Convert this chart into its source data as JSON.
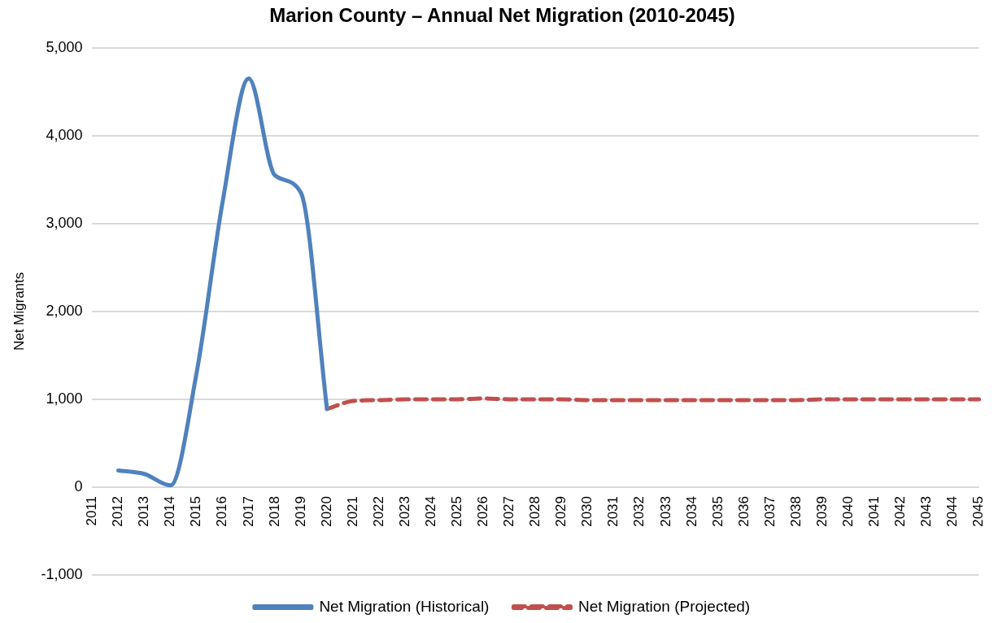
{
  "chart_data": {
    "type": "line",
    "title": "Marion County – Annual Net Migration (2010-2045)",
    "ylabel": "Net Migrants",
    "categories": [
      "2011",
      "2012",
      "2013",
      "2014",
      "2015",
      "2016",
      "2017",
      "2018",
      "2019",
      "2020",
      "2021",
      "2022",
      "2023",
      "2024",
      "2025",
      "2026",
      "2027",
      "2028",
      "2029",
      "2030",
      "2031",
      "2032",
      "2033",
      "2034",
      "2035",
      "2036",
      "2037",
      "2038",
      "2039",
      "2040",
      "2041",
      "2042",
      "2043",
      "2044",
      "2045"
    ],
    "series": [
      {
        "name": "Net Migration (Historical)",
        "color": "#4f81bd",
        "line_style": "solid",
        "values": [
          null,
          190,
          150,
          20,
          1300,
          3250,
          4650,
          3550,
          3350,
          890,
          null,
          null,
          null,
          null,
          null,
          null,
          null,
          null,
          null,
          null,
          null,
          null,
          null,
          null,
          null,
          null,
          null,
          null,
          null,
          null,
          null,
          null,
          null,
          null,
          null
        ]
      },
      {
        "name": "Net Migration (Projected)",
        "color": "#c0504d",
        "line_style": "dashed",
        "values": [
          null,
          null,
          null,
          null,
          null,
          null,
          null,
          null,
          null,
          890,
          980,
          990,
          1000,
          1000,
          1000,
          1010,
          1000,
          1000,
          1000,
          990,
          990,
          990,
          990,
          990,
          990,
          990,
          990,
          990,
          1000,
          1000,
          1000,
          1000,
          1000,
          1000,
          1000
        ]
      }
    ],
    "ylim": [
      -1000,
      5000
    ],
    "yticks": [
      {
        "value": -1000,
        "label": "-1,000"
      },
      0,
      {
        "value": 1000,
        "label": "1,000"
      },
      {
        "value": 2000,
        "label": "2,000"
      },
      {
        "value": 3000,
        "label": "3,000"
      },
      {
        "value": 4000,
        "label": "4,000"
      },
      {
        "value": 5000,
        "label": "5,000"
      }
    ],
    "grid": "y",
    "legend": "bottom",
    "marker": "none"
  }
}
